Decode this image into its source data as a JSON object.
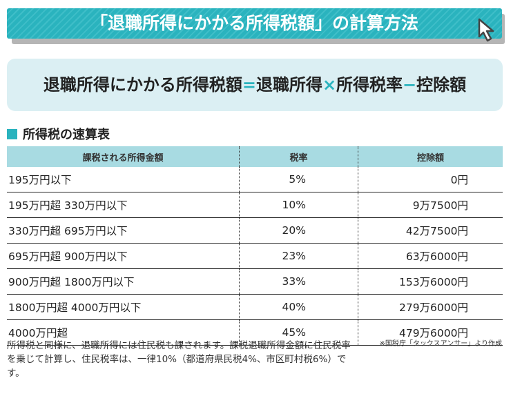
{
  "title": "「退職所得にかかる所得税額」の計算方法",
  "formula": {
    "a": "退職所得にかかる所得税額",
    "eq": "=",
    "b": "退職所得",
    "times": "×",
    "c": "所得税率",
    "minus": "−",
    "d": "控除額"
  },
  "section_title": "所得税の速算表",
  "table": {
    "headers": [
      "課税される所得金額",
      "税率",
      "控除額"
    ],
    "rows": [
      [
        "195万円以下",
        "5%",
        "0円"
      ],
      [
        "195万円超 330万円以下",
        "10%",
        "9万7500円"
      ],
      [
        "330万円超 695万円以下",
        "20%",
        "42万7500円"
      ],
      [
        "695万円超 900万円以下",
        "23%",
        "63万6000円"
      ],
      [
        "900万円超 1800万円以下",
        "33%",
        "153万6000円"
      ],
      [
        "1800万円超 4000万円以下",
        "40%",
        "279万6000円"
      ],
      [
        "4000万円超",
        "45%",
        "479万6000円"
      ]
    ]
  },
  "source": "※国税庁「タックスアンサー」より作成",
  "note": "所得税と同様に、退職所得には住民税も課されます。課税退職所得金額に住民税率を乗じて計算し、住民税率は、一律10%（都道府県民税4%、市区町村税6%）です。",
  "colors": {
    "accent": "#2ab3be",
    "formula_bg": "#dbeff3",
    "header_bg": "#a8dbe2"
  }
}
